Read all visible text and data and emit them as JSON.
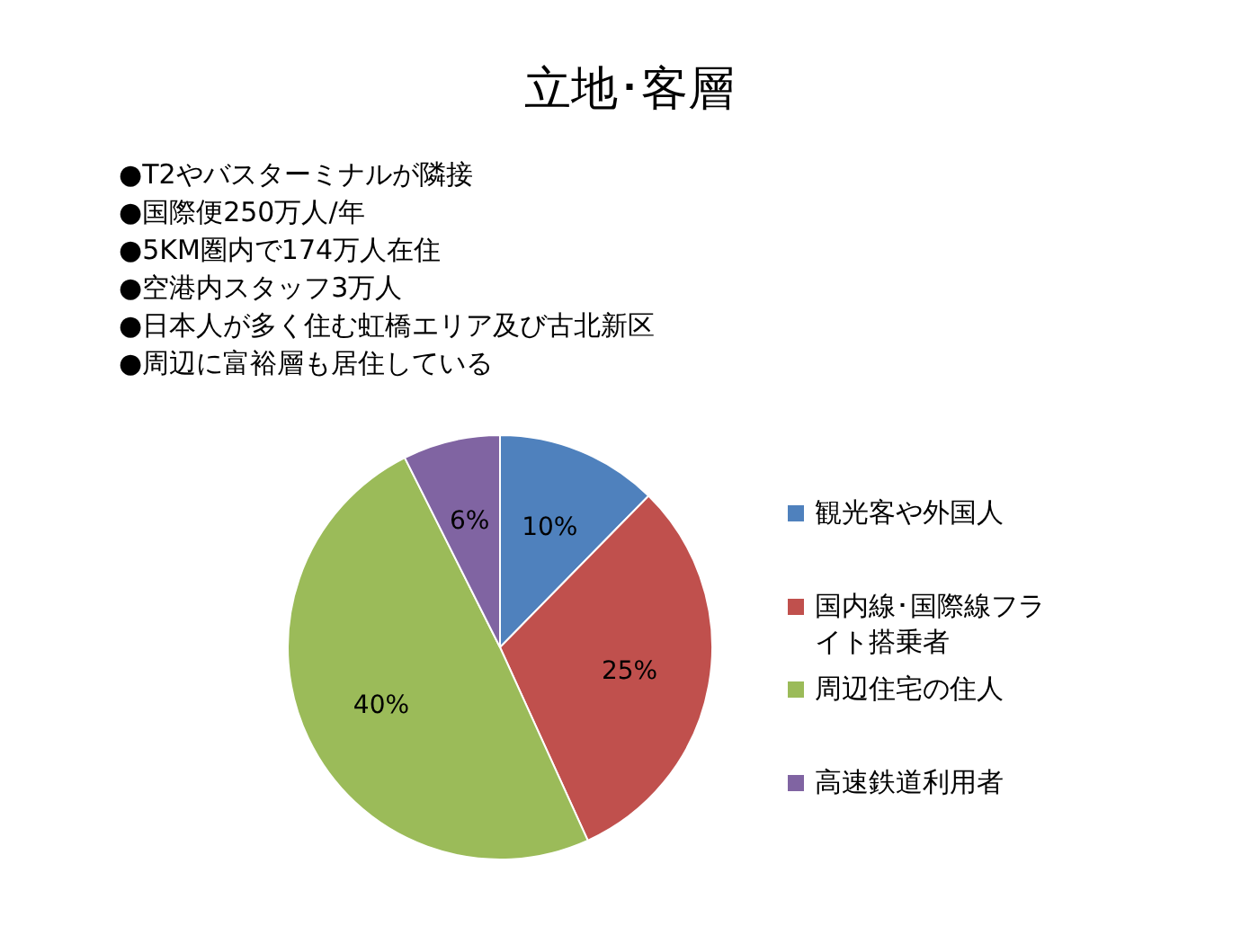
{
  "chart_data": {
    "type": "pie",
    "title": "立地･客層",
    "annotations": [
      "●T2やバスターミナルが隣接",
      "●国際便250万人/年",
      "●5KM圏内で174万人在住",
      "●空港内スタッフ3万人",
      "●日本人が多く住む虹橋エリア及び古北新区",
      "●周辺に富裕層も居住している"
    ],
    "categories": [
      "観光客や外国人",
      "国内線･国際線フライト搭乗者",
      "周辺住宅の住人",
      "高速鉄道利用者"
    ],
    "values": [
      10,
      25,
      40,
      6
    ],
    "value_labels": [
      "10%",
      "25%",
      "40%",
      "6%"
    ],
    "colors": [
      "#4f81bd",
      "#c0504d",
      "#9bbb59",
      "#8064a2"
    ],
    "legend": "right"
  }
}
